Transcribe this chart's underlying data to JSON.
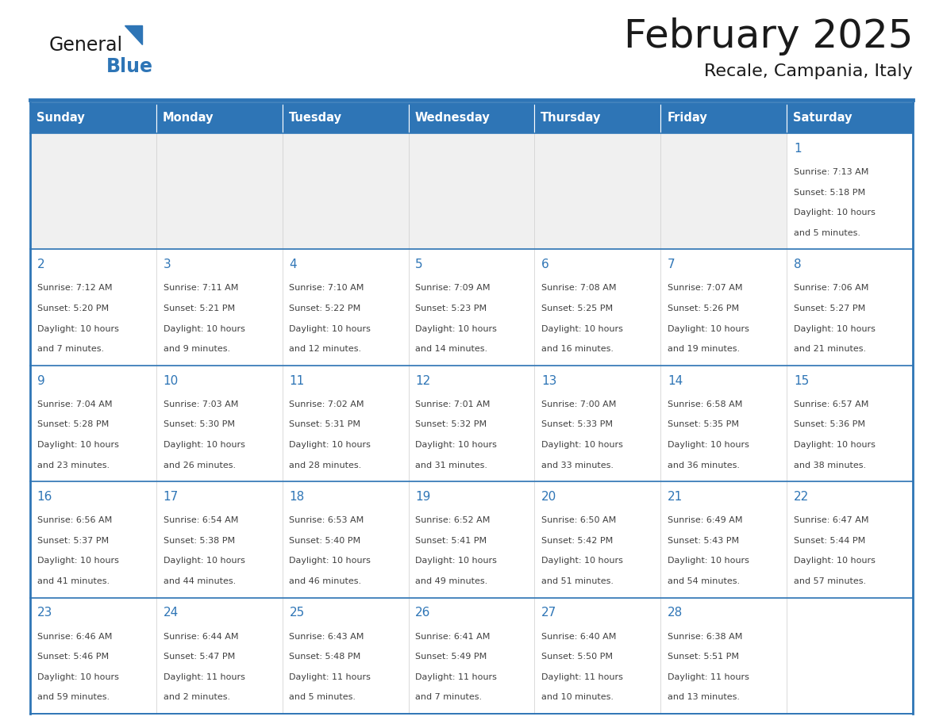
{
  "title": "February 2025",
  "subtitle": "Recale, Campania, Italy",
  "days_of_week": [
    "Sunday",
    "Monday",
    "Tuesday",
    "Wednesday",
    "Thursday",
    "Friday",
    "Saturday"
  ],
  "header_bg": "#2E75B6",
  "header_text": "#FFFFFF",
  "cell_bg_light": "#FFFFFF",
  "cell_bg_gray": "#F0F0F0",
  "divider_color": "#2E75B6",
  "day_number_color": "#2E75B6",
  "text_color": "#404040",
  "title_color": "#1a1a1a",
  "calendar_data": [
    [
      {
        "day": null,
        "sunrise": null,
        "sunset": null,
        "daylight": null
      },
      {
        "day": null,
        "sunrise": null,
        "sunset": null,
        "daylight": null
      },
      {
        "day": null,
        "sunrise": null,
        "sunset": null,
        "daylight": null
      },
      {
        "day": null,
        "sunrise": null,
        "sunset": null,
        "daylight": null
      },
      {
        "day": null,
        "sunrise": null,
        "sunset": null,
        "daylight": null
      },
      {
        "day": null,
        "sunrise": null,
        "sunset": null,
        "daylight": null
      },
      {
        "day": 1,
        "sunrise": "7:13 AM",
        "sunset": "5:18 PM",
        "daylight": "10 hours\nand 5 minutes."
      }
    ],
    [
      {
        "day": 2,
        "sunrise": "7:12 AM",
        "sunset": "5:20 PM",
        "daylight": "10 hours\nand 7 minutes."
      },
      {
        "day": 3,
        "sunrise": "7:11 AM",
        "sunset": "5:21 PM",
        "daylight": "10 hours\nand 9 minutes."
      },
      {
        "day": 4,
        "sunrise": "7:10 AM",
        "sunset": "5:22 PM",
        "daylight": "10 hours\nand 12 minutes."
      },
      {
        "day": 5,
        "sunrise": "7:09 AM",
        "sunset": "5:23 PM",
        "daylight": "10 hours\nand 14 minutes."
      },
      {
        "day": 6,
        "sunrise": "7:08 AM",
        "sunset": "5:25 PM",
        "daylight": "10 hours\nand 16 minutes."
      },
      {
        "day": 7,
        "sunrise": "7:07 AM",
        "sunset": "5:26 PM",
        "daylight": "10 hours\nand 19 minutes."
      },
      {
        "day": 8,
        "sunrise": "7:06 AM",
        "sunset": "5:27 PM",
        "daylight": "10 hours\nand 21 minutes."
      }
    ],
    [
      {
        "day": 9,
        "sunrise": "7:04 AM",
        "sunset": "5:28 PM",
        "daylight": "10 hours\nand 23 minutes."
      },
      {
        "day": 10,
        "sunrise": "7:03 AM",
        "sunset": "5:30 PM",
        "daylight": "10 hours\nand 26 minutes."
      },
      {
        "day": 11,
        "sunrise": "7:02 AM",
        "sunset": "5:31 PM",
        "daylight": "10 hours\nand 28 minutes."
      },
      {
        "day": 12,
        "sunrise": "7:01 AM",
        "sunset": "5:32 PM",
        "daylight": "10 hours\nand 31 minutes."
      },
      {
        "day": 13,
        "sunrise": "7:00 AM",
        "sunset": "5:33 PM",
        "daylight": "10 hours\nand 33 minutes."
      },
      {
        "day": 14,
        "sunrise": "6:58 AM",
        "sunset": "5:35 PM",
        "daylight": "10 hours\nand 36 minutes."
      },
      {
        "day": 15,
        "sunrise": "6:57 AM",
        "sunset": "5:36 PM",
        "daylight": "10 hours\nand 38 minutes."
      }
    ],
    [
      {
        "day": 16,
        "sunrise": "6:56 AM",
        "sunset": "5:37 PM",
        "daylight": "10 hours\nand 41 minutes."
      },
      {
        "day": 17,
        "sunrise": "6:54 AM",
        "sunset": "5:38 PM",
        "daylight": "10 hours\nand 44 minutes."
      },
      {
        "day": 18,
        "sunrise": "6:53 AM",
        "sunset": "5:40 PM",
        "daylight": "10 hours\nand 46 minutes."
      },
      {
        "day": 19,
        "sunrise": "6:52 AM",
        "sunset": "5:41 PM",
        "daylight": "10 hours\nand 49 minutes."
      },
      {
        "day": 20,
        "sunrise": "6:50 AM",
        "sunset": "5:42 PM",
        "daylight": "10 hours\nand 51 minutes."
      },
      {
        "day": 21,
        "sunrise": "6:49 AM",
        "sunset": "5:43 PM",
        "daylight": "10 hours\nand 54 minutes."
      },
      {
        "day": 22,
        "sunrise": "6:47 AM",
        "sunset": "5:44 PM",
        "daylight": "10 hours\nand 57 minutes."
      }
    ],
    [
      {
        "day": 23,
        "sunrise": "6:46 AM",
        "sunset": "5:46 PM",
        "daylight": "10 hours\nand 59 minutes."
      },
      {
        "day": 24,
        "sunrise": "6:44 AM",
        "sunset": "5:47 PM",
        "daylight": "11 hours\nand 2 minutes."
      },
      {
        "day": 25,
        "sunrise": "6:43 AM",
        "sunset": "5:48 PM",
        "daylight": "11 hours\nand 5 minutes."
      },
      {
        "day": 26,
        "sunrise": "6:41 AM",
        "sunset": "5:49 PM",
        "daylight": "11 hours\nand 7 minutes."
      },
      {
        "day": 27,
        "sunrise": "6:40 AM",
        "sunset": "5:50 PM",
        "daylight": "11 hours\nand 10 minutes."
      },
      {
        "day": 28,
        "sunrise": "6:38 AM",
        "sunset": "5:51 PM",
        "daylight": "11 hours\nand 13 minutes."
      },
      {
        "day": null,
        "sunrise": null,
        "sunset": null,
        "daylight": null
      }
    ]
  ]
}
